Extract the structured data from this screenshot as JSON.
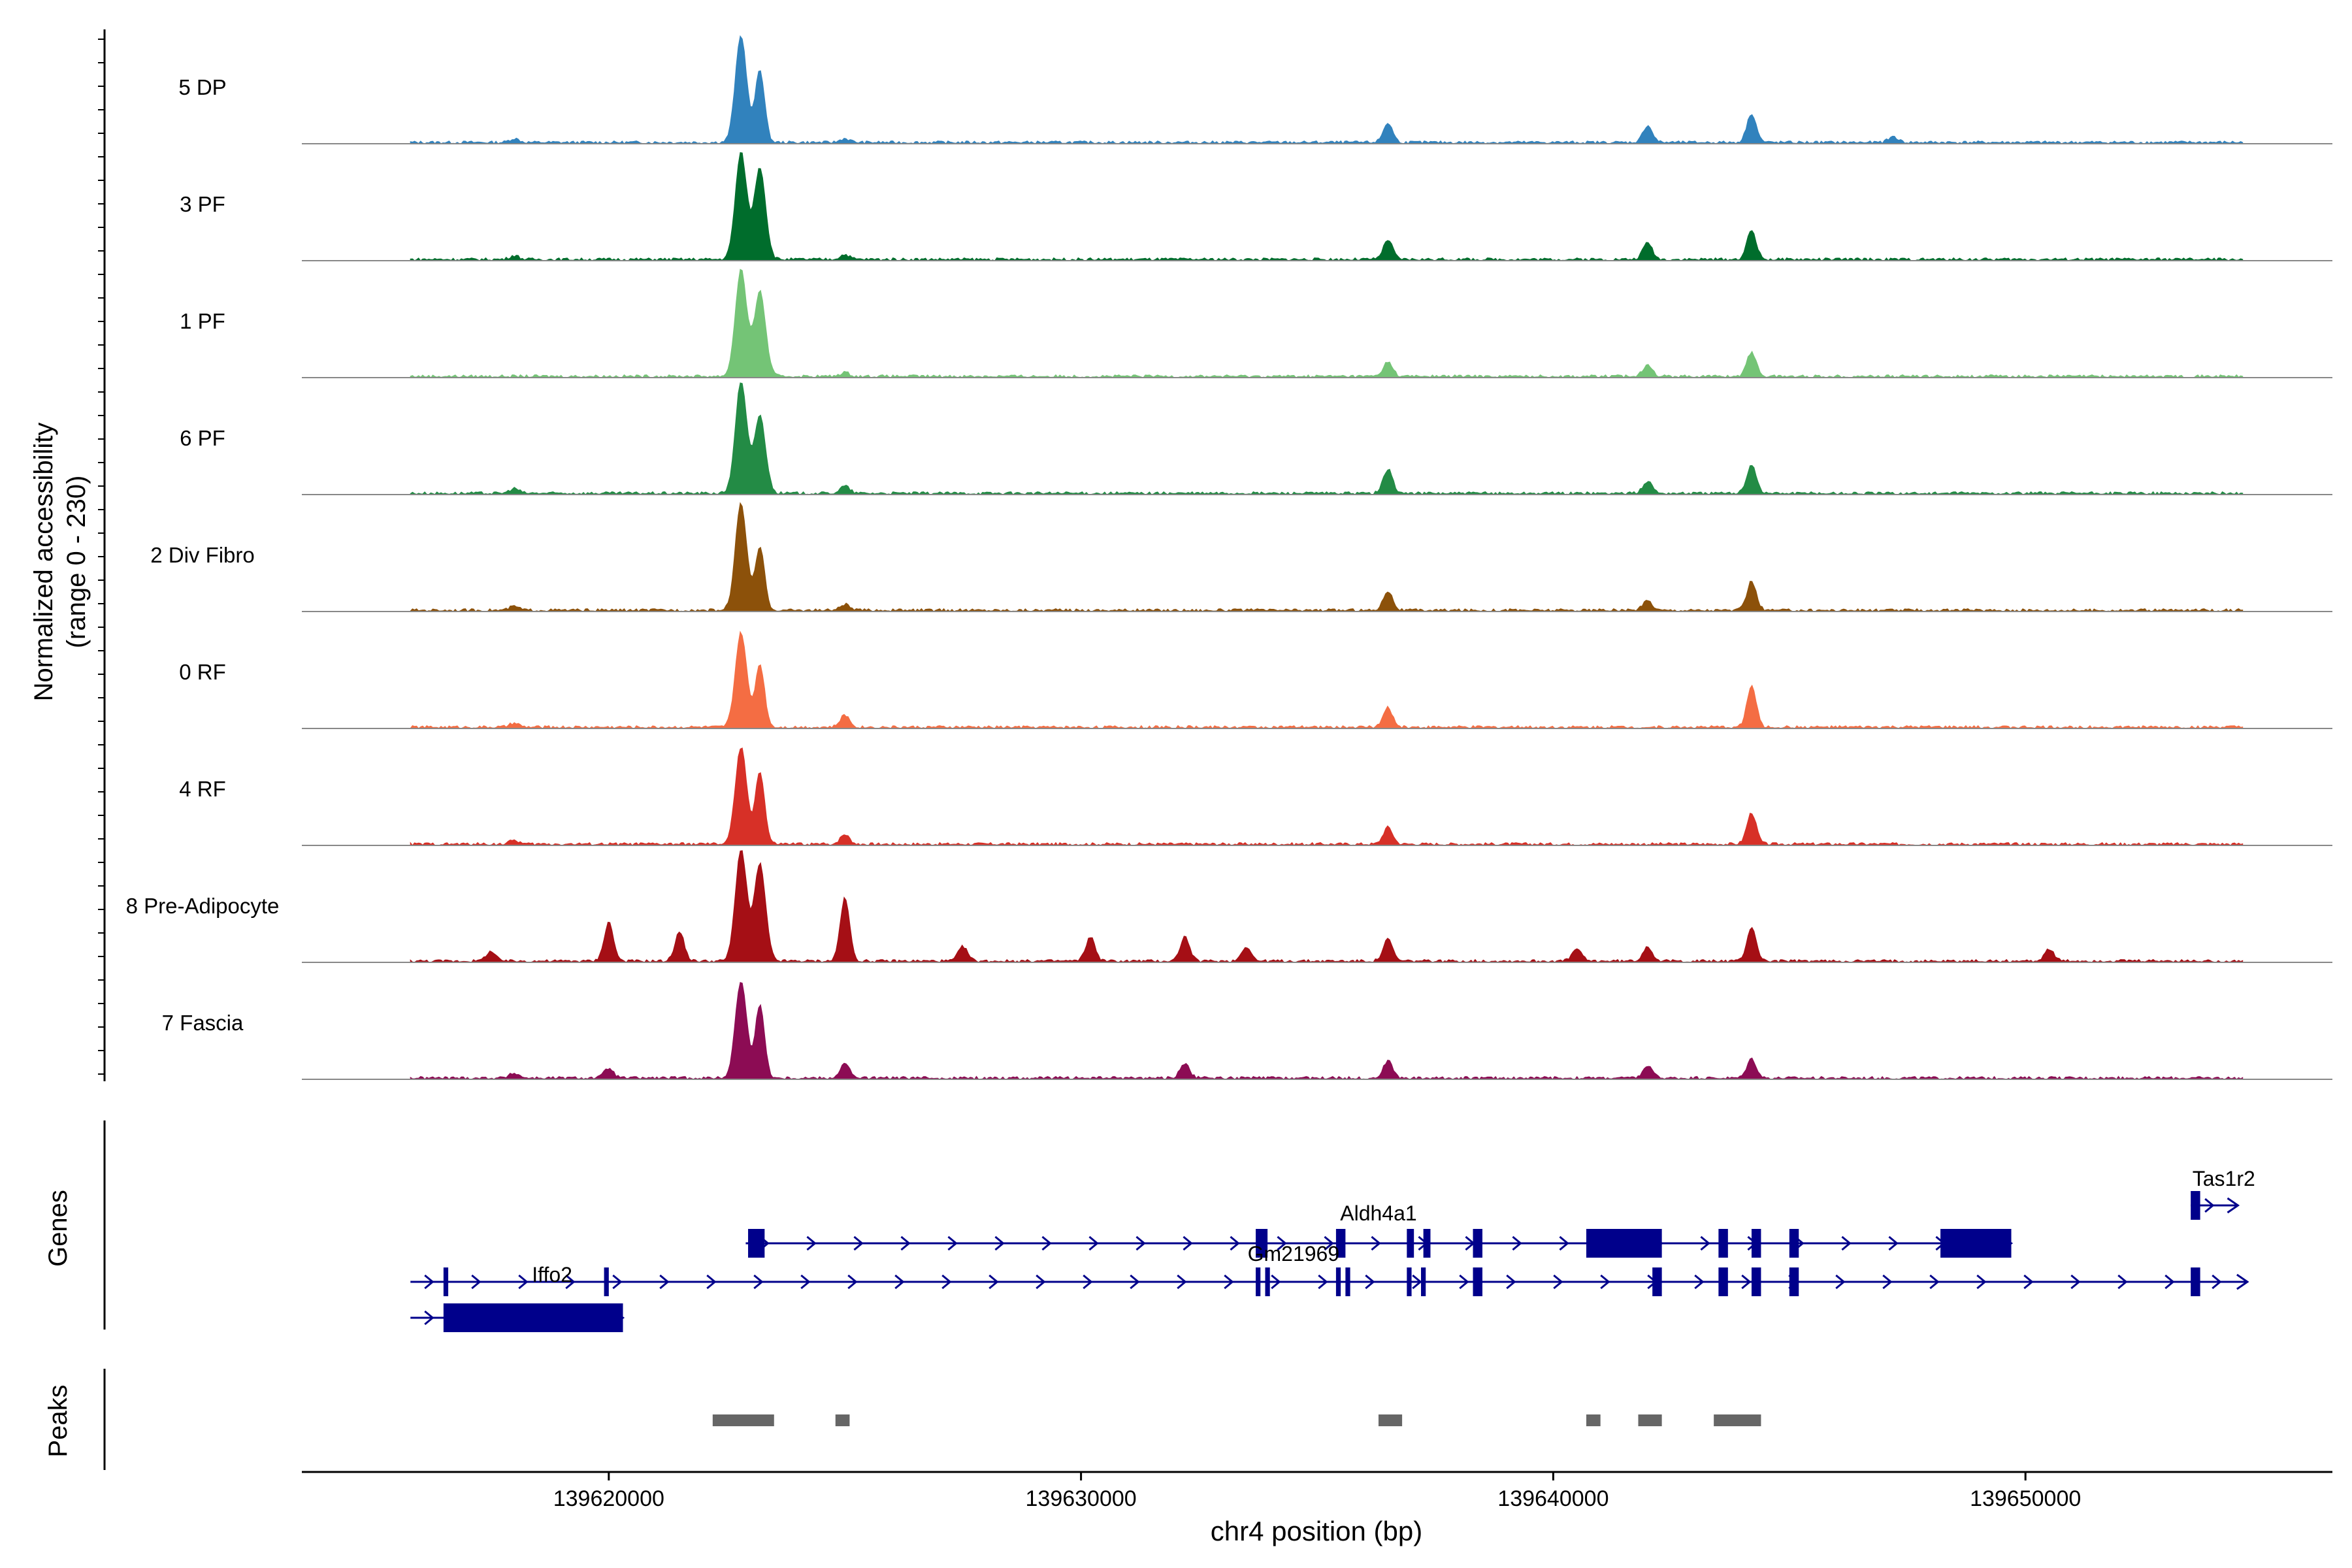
{
  "chart_data": {
    "type": "area",
    "title": "",
    "ylabel_line1": "Normalized accessibility",
    "ylabel_line2": "(range 0 - 230)",
    "y_range": [
      0,
      230
    ],
    "xlabel": "chr4 position (bp)",
    "xlim": [
      139613500,
      139656500
    ],
    "x_ticks": [
      139620000,
      139630000,
      139640000,
      139650000
    ],
    "x_tick_labels": [
      "139620000",
      "139630000",
      "139640000",
      "139650000"
    ],
    "tracks": [
      {
        "name": "5 DP",
        "color": "#3182bd",
        "peaks": [
          [
            139622800,
            220
          ],
          [
            139623200,
            150
          ],
          [
            139636500,
            40
          ],
          [
            139642000,
            35
          ],
          [
            139644200,
            60
          ],
          [
            139647200,
            12
          ],
          [
            139618000,
            8
          ],
          [
            139625000,
            8
          ]
        ]
      },
      {
        "name": "3 PF",
        "color": "#006d2c",
        "peaks": [
          [
            139622800,
            220
          ],
          [
            139623200,
            190
          ],
          [
            139636500,
            40
          ],
          [
            139642000,
            35
          ],
          [
            139644200,
            60
          ],
          [
            139618000,
            8
          ],
          [
            139625000,
            10
          ]
        ]
      },
      {
        "name": "1 PF",
        "color": "#74c476",
        "peaks": [
          [
            139622800,
            220
          ],
          [
            139623200,
            175
          ],
          [
            139636500,
            30
          ],
          [
            139642000,
            25
          ],
          [
            139644200,
            50
          ],
          [
            139625000,
            8
          ]
        ]
      },
      {
        "name": "6 PF",
        "color": "#238b45",
        "peaks": [
          [
            139622800,
            230
          ],
          [
            139623200,
            160
          ],
          [
            139636500,
            50
          ],
          [
            139642000,
            25
          ],
          [
            139644200,
            60
          ],
          [
            139618000,
            10
          ],
          [
            139625000,
            15
          ]
        ]
      },
      {
        "name": "2 Div Fibro",
        "color": "#8c510a",
        "peaks": [
          [
            139622800,
            220
          ],
          [
            139623200,
            130
          ],
          [
            139636500,
            40
          ],
          [
            139642000,
            20
          ],
          [
            139644200,
            60
          ],
          [
            139618000,
            8
          ],
          [
            139625000,
            12
          ]
        ]
      },
      {
        "name": "0 RF",
        "color": "#f46d43",
        "peaks": [
          [
            139622800,
            195
          ],
          [
            139623200,
            130
          ],
          [
            139636500,
            40
          ],
          [
            139644200,
            85
          ],
          [
            139625000,
            25
          ],
          [
            139618000,
            8
          ]
        ]
      },
      {
        "name": "4 RF",
        "color": "#d73027",
        "peaks": [
          [
            139622800,
            200
          ],
          [
            139623200,
            150
          ],
          [
            139636500,
            35
          ],
          [
            139644200,
            65
          ],
          [
            139625000,
            20
          ],
          [
            139618000,
            8
          ]
        ]
      },
      {
        "name": "8 Pre-Adipocyte",
        "color": "#a50f15",
        "peaks": [
          [
            139622800,
            230
          ],
          [
            139623200,
            200
          ],
          [
            139625000,
            130
          ],
          [
            139620000,
            80
          ],
          [
            139621500,
            60
          ],
          [
            139630200,
            50
          ],
          [
            139632200,
            50
          ],
          [
            139636500,
            45
          ],
          [
            139644200,
            70
          ],
          [
            139617500,
            20
          ],
          [
            139627500,
            30
          ],
          [
            139633500,
            30
          ],
          [
            139640500,
            25
          ],
          [
            139642000,
            30
          ],
          [
            139650500,
            25
          ]
        ]
      },
      {
        "name": "7 Fascia",
        "color": "#8c0c54",
        "peaks": [
          [
            139622800,
            200
          ],
          [
            139623200,
            150
          ],
          [
            139625000,
            30
          ],
          [
            139620000,
            20
          ],
          [
            139632200,
            30
          ],
          [
            139636500,
            35
          ],
          [
            139644200,
            40
          ],
          [
            139642000,
            25
          ],
          [
            139618000,
            10
          ]
        ]
      }
    ],
    "genes_label": "Genes",
    "peaks_label": "Peaks",
    "genes": [
      {
        "name": "Aldh4a1",
        "start": 139622900,
        "end": 139649700,
        "row": 1,
        "exons": [
          [
            139622950,
            139623300
          ],
          [
            139633700,
            139633950
          ],
          [
            139635400,
            139635600
          ],
          [
            139636900,
            139637050
          ],
          [
            139637250,
            139637400
          ],
          [
            139638300,
            139638500
          ],
          [
            139640700,
            139642300
          ],
          [
            139643500,
            139643700
          ],
          [
            139644200,
            139644400
          ],
          [
            139645000,
            139645200
          ],
          [
            139648200,
            139649700
          ]
        ],
        "label_x": 139636300
      },
      {
        "name": "Gm21969",
        "start": 139615800,
        "end": 139654700,
        "row": 2,
        "exons": [
          [
            139616500,
            139616600
          ],
          [
            139619900,
            139620000
          ],
          [
            139633700,
            139633800
          ],
          [
            139633900,
            139634000
          ],
          [
            139635400,
            139635500
          ],
          [
            139635600,
            139635700
          ],
          [
            139636900,
            139637000
          ],
          [
            139637200,
            139637300
          ],
          [
            139638300,
            139638500
          ],
          [
            139642100,
            139642300
          ],
          [
            139643500,
            139643700
          ],
          [
            139644200,
            139644400
          ],
          [
            139645000,
            139645200
          ],
          [
            139653500,
            139653700
          ]
        ],
        "label_x": 139634500
      },
      {
        "name": "Iffo2",
        "start": 139615800,
        "end": 139620300,
        "row": 3,
        "exons": [
          [
            139616500,
            139620300
          ]
        ],
        "label_x": 139618800
      },
      {
        "name": "Tas1r2",
        "start": 139653500,
        "end": 139654500,
        "row": 0,
        "exons": [
          [
            139653500,
            139653700
          ]
        ],
        "label_x": 139654200
      }
    ],
    "peak_regions": [
      [
        139622200,
        139623500
      ],
      [
        139624800,
        139625100
      ],
      [
        139636300,
        139636800
      ],
      [
        139640700,
        139641000
      ],
      [
        139641800,
        139642300
      ],
      [
        139643400,
        139644400
      ]
    ]
  }
}
